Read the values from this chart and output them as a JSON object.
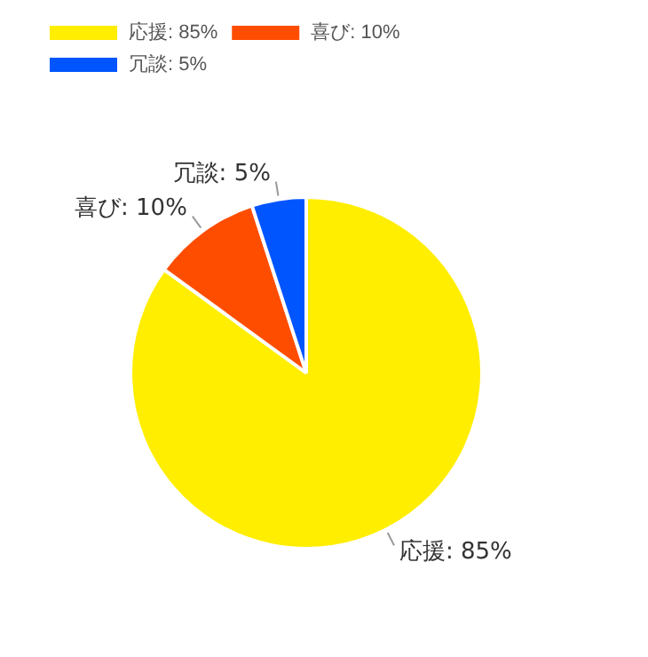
{
  "chart_data": {
    "type": "pie",
    "categories": [
      "応援: 85%",
      "喜び: 10%",
      "冗談: 5%"
    ],
    "values": [
      85,
      10,
      5
    ],
    "colors": [
      "#ffee00",
      "#ff4d00",
      "#0055ff"
    ],
    "legend": "top left"
  }
}
